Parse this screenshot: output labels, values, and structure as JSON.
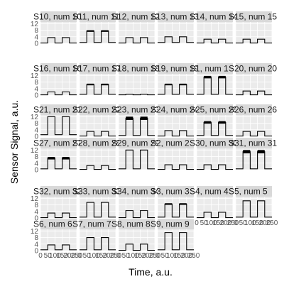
{
  "chart_data": {
    "type": "line",
    "xlabel": "Time, a.u.",
    "ylabel": "Sensor Signal, a.u.",
    "xlim": [
      0,
      250
    ],
    "ylim": [
      0,
      13
    ],
    "x_ticks": [
      0,
      50,
      100,
      150,
      200,
      250
    ],
    "x_tick_labels": [
      "0",
      "50",
      "100",
      "150",
      "200",
      "250"
    ],
    "y_ticks": [
      0,
      4,
      8,
      12
    ],
    "y_tick_labels": [
      "0",
      "4",
      "8",
      "12"
    ],
    "ncol": 6,
    "colors": {
      "line": "#000000",
      "strip": "#d9d9d9",
      "panel": "#ebebeb",
      "grid": "#ffffff"
    },
    "panels": [
      {
        "label": "S10, num 10",
        "high": 3.5,
        "low": 0.2,
        "band": 0
      },
      {
        "label": "S11, num 11",
        "high": 7.5,
        "low": 0.5,
        "band": 1.0
      },
      {
        "label": "S12, num 12",
        "high": 3.5,
        "low": 0.2,
        "band": 0
      },
      {
        "label": "S13, num 13",
        "high": 4.0,
        "low": 0.5,
        "band": 0
      },
      {
        "label": "S14, num 14",
        "high": 2.5,
        "low": 0.2,
        "band": 0
      },
      {
        "label": "S15, num 15",
        "high": 2.5,
        "low": 0.2,
        "band": 0
      },
      {
        "label": "S16, num 16",
        "high": 2.0,
        "low": 0.2,
        "band": 0
      },
      {
        "label": "S17, num 17",
        "high": 6.5,
        "low": 0.5,
        "band": 1.0
      },
      {
        "label": "S18, num 18",
        "high": 0.5,
        "low": 0.2,
        "band": 0
      },
      {
        "label": "S19, num 19",
        "high": 6.5,
        "low": 0.5,
        "band": 1.0
      },
      {
        "label": "S1, num 1",
        "high": 11.0,
        "low": 0.5,
        "band": 1.5
      },
      {
        "label": "S20, num 20",
        "high": 2.5,
        "low": 0.2,
        "band": 0
      },
      {
        "label": "S21, num 21",
        "high": 12.0,
        "low": 1.0,
        "band": 0
      },
      {
        "label": "S22, num 22",
        "high": 3.0,
        "low": 0.2,
        "band": 0
      },
      {
        "label": "S23, num 23",
        "high": 11.0,
        "low": 0.5,
        "band": 2.0
      },
      {
        "label": "S24, num 24",
        "high": 3.5,
        "low": 0.2,
        "band": 0
      },
      {
        "label": "S25, num 25",
        "high": 8.5,
        "low": 0.5,
        "band": 1.5
      },
      {
        "label": "S26, num 26",
        "high": 3.0,
        "low": 0.2,
        "band": 0
      },
      {
        "label": "S27, num 27",
        "high": 7.0,
        "low": 0.5,
        "band": 1.5
      },
      {
        "label": "S28, num 28",
        "high": 2.5,
        "low": 0.2,
        "band": 0
      },
      {
        "label": "S29, num 29",
        "high": 12.0,
        "low": 0.5,
        "band": 0
      },
      {
        "label": "S2, num 2",
        "high": 3.0,
        "low": 0.2,
        "band": 0
      },
      {
        "label": "S30, num 30",
        "high": 3.0,
        "low": 0.2,
        "band": 0
      },
      {
        "label": "S31, num 31",
        "high": 11.0,
        "low": 0.5,
        "band": 2.0
      },
      {
        "label": "S32, num 32",
        "high": 3.0,
        "low": 0.2,
        "band": 0
      },
      {
        "label": "S33, num 33",
        "high": 9.5,
        "low": 0.5,
        "band": 0
      },
      {
        "label": "S34, num 34",
        "high": 4.5,
        "low": 0.2,
        "band": 0
      },
      {
        "label": "S3, num 3",
        "high": 8.5,
        "low": 0.5,
        "band": 1.0
      },
      {
        "label": "S4, num 4",
        "high": 3.5,
        "low": 0.2,
        "band": 0
      },
      {
        "label": "S5, num 5",
        "high": 10.5,
        "low": 0.5,
        "band": 0
      },
      {
        "label": "S6, num 6",
        "high": 3.5,
        "low": 0.5,
        "band": 0
      },
      {
        "label": "S7, num 7",
        "high": 8.0,
        "low": 0.5,
        "band": 0
      },
      {
        "label": "S8, num 8",
        "high": 4.0,
        "low": 0.2,
        "band": 0
      },
      {
        "label": "S9, num 9",
        "high": 11.0,
        "low": 0.5,
        "band": 0
      }
    ]
  }
}
